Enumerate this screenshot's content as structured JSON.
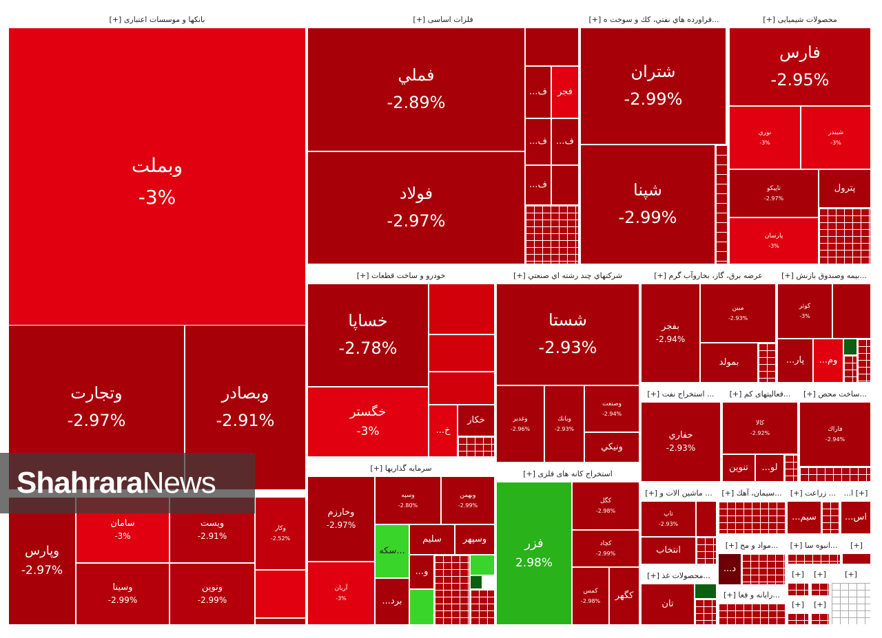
{
  "watermark": {
    "brand_bold": "Shahrara",
    "brand_light": "News"
  },
  "sections": {
    "banks": "بانکها و موسسات اعتباری [+]",
    "metals": "فلزات اساسی [+]",
    "oil": "...فراورده هاي نفتي، كك و سوخت ه [+]",
    "chem": "محصولات شیمیایی [+]",
    "auto": "خودرو و ساخت قطعات [+]",
    "multi": "شرکتهاي چند رشته اي صنعتي [+]",
    "power": "عرضه برق، گاز، بخاروآب گرم [+]",
    "insur": "...بیمه وصندوق بازنش [+]",
    "oilext": "... استخراج نفت [+]",
    "activ": "...فعالیتهای کم [+]",
    "build": "...ساخت محص [+]",
    "invest": "سرمایه گذاریها [+]",
    "mining": "استخراج کانه های فلزی [+]",
    "mach": "... ماشین الات و [+]",
    "cement": "...سیمان، آهك [+]",
    "agri": "... زراعت [+]",
    "misc1": "[+] ا...",
    "food": "...محصولات غذ [+]",
    "matl": "...مواد و مح [+]",
    "mass": "...انبوه سا [+]",
    "misc2": "[+]",
    "comp": "...رایانه و فعا [+]",
    "misc3": "[+]",
    "misc4": "[+]",
    "misc5": "[+]",
    "misc6": "[+]",
    "misc7": "[+]"
  },
  "tiles": {
    "vbmellat": {
      "sym": "وبملت",
      "pct": "-3%"
    },
    "vtejarat": {
      "sym": "وتجارت",
      "pct": "-2.97%"
    },
    "vbsader": {
      "sym": "وبصادر",
      "pct": "-2.91%"
    },
    "vpars": {
      "sym": "وپارس",
      "pct": "-2.97%"
    },
    "saman": {
      "sym": "سامان",
      "pct": "-3%"
    },
    "vpost": {
      "sym": "ويست",
      "pct": "-2.91%"
    },
    "vsina": {
      "sym": "وسينا",
      "pct": "-2.99%"
    },
    "vnovin": {
      "sym": "ونوين",
      "pct": "-2.99%"
    },
    "vkar": {
      "sym": "وكار",
      "pct": "-2.52%"
    },
    "fmeli": {
      "sym": "فملي",
      "pct": "-2.89%"
    },
    "foolad": {
      "sym": "فولاد",
      "pct": "-2.97%"
    },
    "fajr": {
      "sym": "فجر"
    },
    "f1": {
      "sym": "...ف"
    },
    "f2": {
      "sym": "...ف"
    },
    "f3": {
      "sym": "...ف"
    },
    "f4": {
      "sym": "...ف"
    },
    "shetran": {
      "sym": "شتران",
      "pct": "-2.99%"
    },
    "shepna": {
      "sym": "شپنا",
      "pct": "-2.99%"
    },
    "fars": {
      "sym": "فارس",
      "pct": "-2.95%"
    },
    "noori": {
      "sym": "نوري",
      "pct": "-3%"
    },
    "shabandar": {
      "sym": "شبندر",
      "pct": "-3%"
    },
    "tapiko": {
      "sym": "تاپيكو",
      "pct": "-2.97%"
    },
    "petrol": {
      "sym": "پترول"
    },
    "parsan": {
      "sym": "پارسان",
      "pct": "-3%"
    },
    "khsapa": {
      "sym": "خساپا",
      "pct": "-2.78%"
    },
    "khgostar": {
      "sym": "خگستر",
      "pct": "-3%"
    },
    "khkar": {
      "sym": "خكار"
    },
    "khmo": {
      "sym": "...خ"
    },
    "shasta": {
      "sym": "شستا",
      "pct": "-2.93%"
    },
    "vghadir": {
      "sym": "وغدير",
      "pct": "-2.96%"
    },
    "vbank": {
      "sym": "وبانك",
      "pct": "-2.93%"
    },
    "vsanat": {
      "sym": "وصنعت",
      "pct": "-2.94%"
    },
    "vniki": {
      "sym": "ونيكي"
    },
    "bfajr": {
      "sym": "بفجر",
      "pct": "-2.94%"
    },
    "mobin": {
      "sym": "مبين",
      "pct": "-2.93%"
    },
    "bmolad": {
      "sym": "بمولد"
    },
    "kowsar": {
      "sym": "كوثر",
      "pct": "-3%"
    },
    "par": {
      "sym": "...پار"
    },
    "vom": {
      "sym": "...وم"
    },
    "hafari": {
      "sym": "حفاري",
      "pct": "-2.93%"
    },
    "kala": {
      "sym": "كالا",
      "pct": "-2.92%"
    },
    "tnovin": {
      "sym": "تنوين"
    },
    "lo": {
      "sym": "...لو"
    },
    "farak": {
      "sym": "فاراك",
      "pct": "-2.94%"
    },
    "vkharazm": {
      "sym": "وخارزم",
      "pct": "-2.97%"
    },
    "arian": {
      "sym": "آريان",
      "pct": "-3%"
    },
    "vsepeh": {
      "sym": "وسپه",
      "pct": "-2.80%"
    },
    "vbehmn": {
      "sym": "وبهمن",
      "pct": "-2.99%"
    },
    "sekke": {
      "sym": "سكه..."
    },
    "salim": {
      "sym": "سليم"
    },
    "vsepehr": {
      "sym": "وسپهر"
    },
    "vo": {
      "sym": "...و"
    },
    "bord": {
      "sym": "...برد"
    },
    "fazar": {
      "sym": "فزر",
      "pct": "2.98%"
    },
    "kgol": {
      "sym": "كگل",
      "pct": "-2.98%"
    },
    "kchad": {
      "sym": "كچاد",
      "pct": "-2.99%"
    },
    "kmes": {
      "sym": "كمس",
      "pct": "-2.98%"
    },
    "kgohar": {
      "sym": "كگهر"
    },
    "entekhab": {
      "sym": "انتخاب"
    },
    "tap": {
      "sym": "تاپ",
      "pct": "-2.93%"
    },
    "tan": {
      "sym": "تان"
    },
    "sim": {
      "sym": "...سيم"
    },
    "as": {
      "sym": "...اس"
    },
    "d": {
      "sym": "...د"
    }
  }
}
